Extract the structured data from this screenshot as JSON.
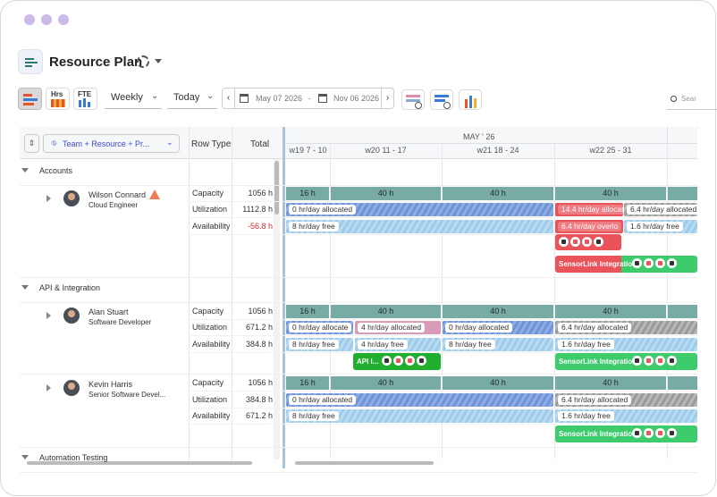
{
  "window": {
    "title": "Resource Plan"
  },
  "toolbar": {
    "hrs": "Hrs",
    "fte": "FTE",
    "view": "Weekly",
    "today": "Today",
    "start_date": "May 07 2026",
    "separator": "-",
    "end_date": "Nov 06 2026",
    "search": "Sear"
  },
  "grid": {
    "group_by": "Team + Resource + Pr...",
    "columns": [
      "Row Type",
      "Total"
    ],
    "month": "MAY ' 26",
    "weeks": [
      "w19 7 - 10",
      "w20 11 - 17",
      "w21 18 - 24",
      "w22 25 - 31"
    ]
  },
  "groups": [
    {
      "name": "Accounts",
      "resources": [
        {
          "name": "Wilson Connard",
          "role": "Cloud Engineer",
          "rows": [
            {
              "type": "Capacity",
              "total": "1056 h"
            },
            {
              "type": "Utilization",
              "total": "1112.8 h"
            },
            {
              "type": "Availability",
              "total": "-56.8 h"
            }
          ],
          "capacity": [
            "16 h",
            "40 h",
            "40 h",
            "40 h"
          ],
          "utilization": [
            "0 hr/day allocated",
            "14.4 hr/day allocat",
            "6.4 hr/day allocated"
          ],
          "availability": [
            "8 hr/day free",
            "6.4 hr/day overlo",
            "1.6 hr/day free"
          ],
          "projects": [
            "SensorLink Integration"
          ]
        }
      ]
    },
    {
      "name": "API & Integration",
      "resources": [
        {
          "name": "Alan Stuart",
          "role": "Software Developer",
          "rows": [
            {
              "type": "Capacity",
              "total": "1056 h"
            },
            {
              "type": "Utilization",
              "total": "671.2 h"
            },
            {
              "type": "Availability",
              "total": "384.8 h"
            }
          ],
          "capacity": [
            "16 h",
            "40 h",
            "40 h",
            "40 h"
          ],
          "utilization": [
            "0 hr/day allocate",
            "4 hr/day allocated",
            "0 hr/day allocated",
            "6.4 hr/day allocated"
          ],
          "availability": [
            "8 hr/day free",
            "4 hr/day free",
            "8 hr/day free",
            "1.6 hr/day free"
          ],
          "projects": [
            "API I...",
            "SensorLink Integration"
          ]
        },
        {
          "name": "Kevin Harris",
          "role": "Senior Software Devel...",
          "rows": [
            {
              "type": "Capacity",
              "total": "1056 h"
            },
            {
              "type": "Utilization",
              "total": "384.8 h"
            },
            {
              "type": "Availability",
              "total": "671.2 h"
            }
          ],
          "capacity": [
            "16 h",
            "40 h",
            "40 h",
            "40 h"
          ],
          "utilization": [
            "0 hr/day allocated",
            "6.4 hr/day allocated"
          ],
          "availability": [
            "8 hr/day free",
            "1.6 hr/day free"
          ],
          "projects": [
            "SensorLink Integration"
          ]
        }
      ]
    },
    {
      "name": "Automation Testing",
      "resources": []
    }
  ]
}
